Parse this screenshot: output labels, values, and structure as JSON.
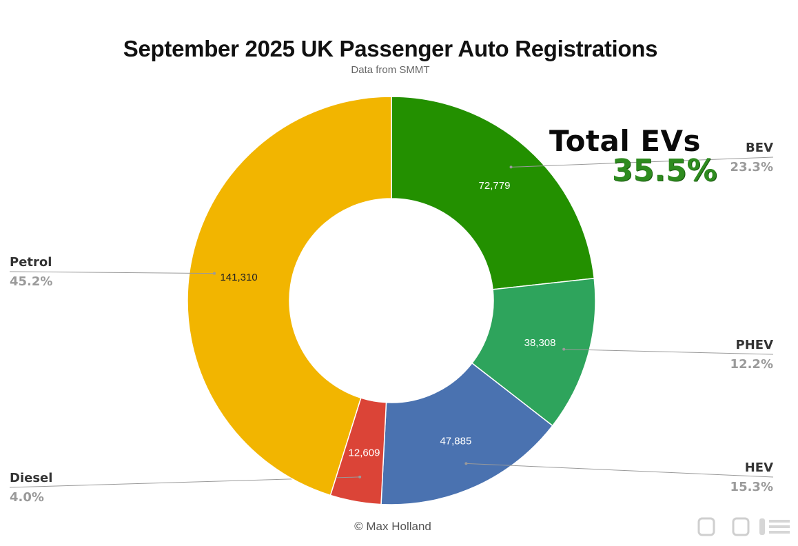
{
  "chart_data": {
    "type": "donut",
    "title": "September 2025 UK Passenger Auto Registrations",
    "subtitle": "Data from SMMT",
    "slices": [
      {
        "name": "BEV",
        "value": 72779,
        "value_label": "72,779",
        "percent_label": "23.3%",
        "color": "#239000",
        "label_color": "#ffffff"
      },
      {
        "name": "PHEV",
        "value": 38308,
        "value_label": "38,308",
        "percent_label": "12.2%",
        "color": "#2ea45c",
        "label_color": "#ffffff"
      },
      {
        "name": "HEV",
        "value": 47885,
        "value_label": "47,885",
        "percent_label": "15.3%",
        "color": "#4a72b0",
        "label_color": "#ffffff"
      },
      {
        "name": "Diesel",
        "value": 12609,
        "value_label": "12,609",
        "percent_label": "4.0%",
        "color": "#db4437",
        "label_color": "#ffffff"
      },
      {
        "name": "Petrol",
        "value": 141310,
        "value_label": "141,310",
        "percent_label": "45.2%",
        "color": "#f2b500",
        "label_color": "#222222"
      }
    ],
    "callout": {
      "title": "Total EVs",
      "value": "35.5%",
      "color": "#2e8b1f"
    },
    "credit": "© Max Holland"
  }
}
